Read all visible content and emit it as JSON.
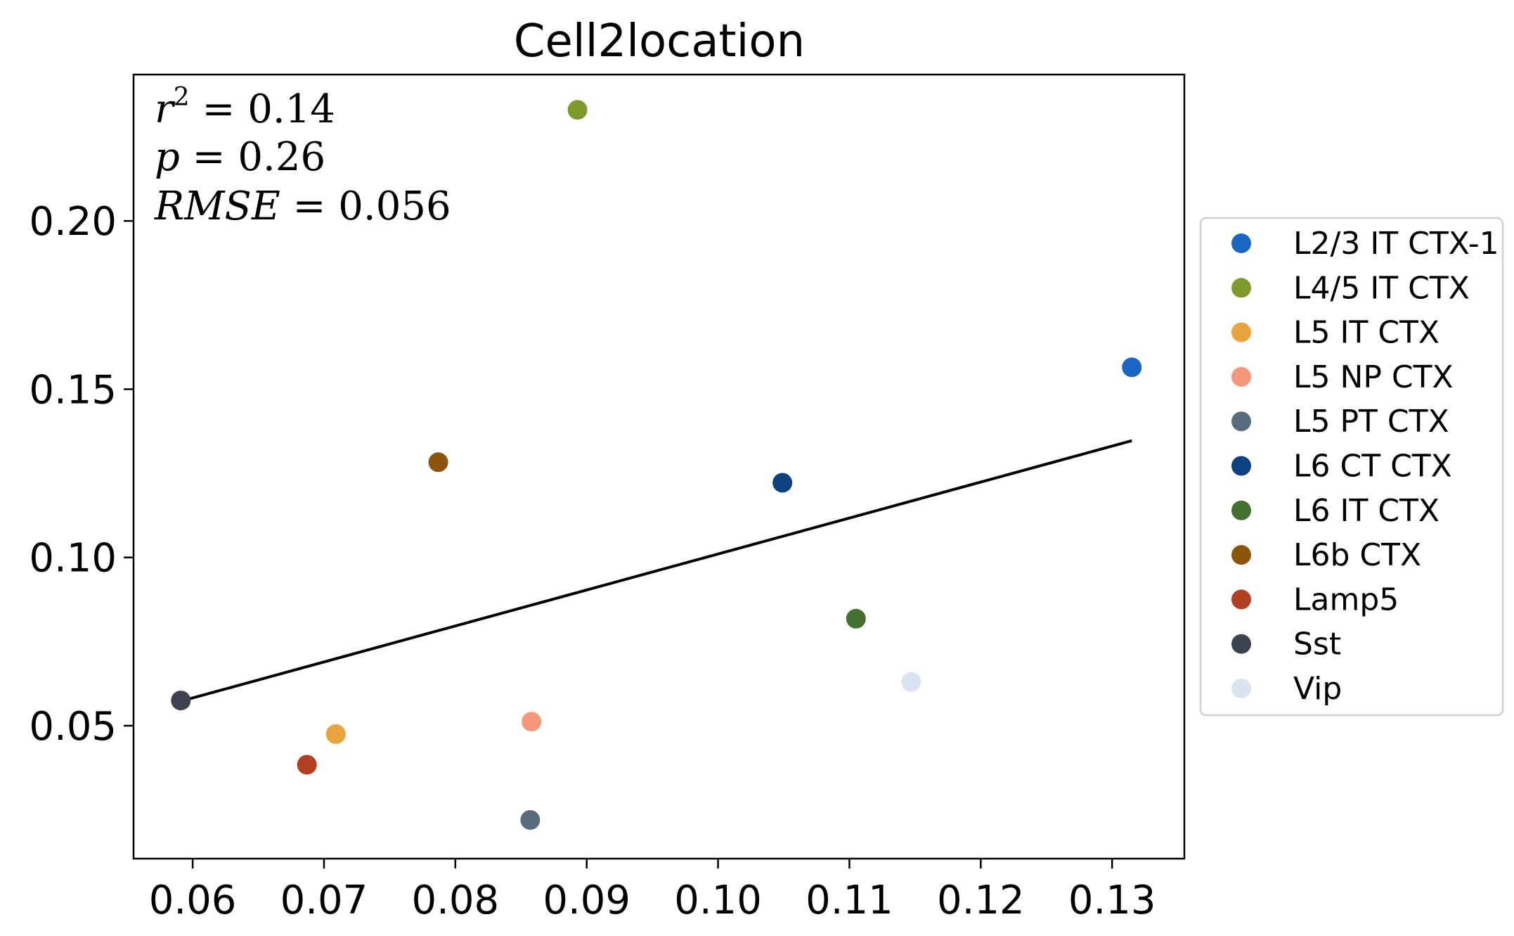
{
  "chart_data": {
    "type": "scatter",
    "title": "Cell2location",
    "xlabel": "",
    "ylabel": "",
    "xlim": [
      0.0555,
      0.1355
    ],
    "ylim": [
      0.0105,
      0.2435
    ],
    "xticks": [
      0.06,
      0.07,
      0.08,
      0.09,
      0.1,
      0.11,
      0.12,
      0.13
    ],
    "xtick_labels": [
      "0.06",
      "0.07",
      "0.08",
      "0.09",
      "0.10",
      "0.11",
      "0.12",
      "0.13"
    ],
    "yticks": [
      0.05,
      0.1,
      0.15,
      0.2
    ],
    "ytick_labels": [
      "0.05",
      "0.10",
      "0.15",
      "0.20"
    ],
    "grid": false,
    "legend_position": "right",
    "stats": {
      "r2_label": "r",
      "r2_sup": "2",
      "r2_value": " = 0.14",
      "p_label": "p",
      "p_value": " = 0.26",
      "rmse_label": "RMSE",
      "rmse_value": " = 0.056"
    },
    "fit_line": {
      "x": [
        0.0591,
        0.1315
      ],
      "y": [
        0.0573,
        0.1347
      ],
      "color": "#000000"
    },
    "series": [
      {
        "name": "L2/3 IT CTX-1",
        "color": "#1a66c2",
        "x": 0.1315,
        "y": 0.1565
      },
      {
        "name": "L4/5 IT CTX",
        "color": "#7f9a2a",
        "x": 0.0893,
        "y": 0.233
      },
      {
        "name": "L5 IT CTX",
        "color": "#e9a43d",
        "x": 0.0709,
        "y": 0.0475
      },
      {
        "name": "L5 NP CTX",
        "color": "#f4977c",
        "x": 0.0858,
        "y": 0.0512
      },
      {
        "name": "L5 PT CTX",
        "color": "#5a6b7e",
        "x": 0.0857,
        "y": 0.022
      },
      {
        "name": "L6 CT CTX",
        "color": "#0c417f",
        "x": 0.1049,
        "y": 0.1222
      },
      {
        "name": "L6 IT CTX",
        "color": "#447131",
        "x": 0.1105,
        "y": 0.0818
      },
      {
        "name": "L6b CTX",
        "color": "#8b560a",
        "x": 0.0787,
        "y": 0.1283
      },
      {
        "name": "Lamp5",
        "color": "#b23f22",
        "x": 0.0687,
        "y": 0.0384
      },
      {
        "name": "Sst",
        "color": "#3c4250",
        "x": 0.0591,
        "y": 0.0575
      },
      {
        "name": "Vip",
        "color": "#dae4f0",
        "x": 0.1147,
        "y": 0.063
      }
    ]
  }
}
